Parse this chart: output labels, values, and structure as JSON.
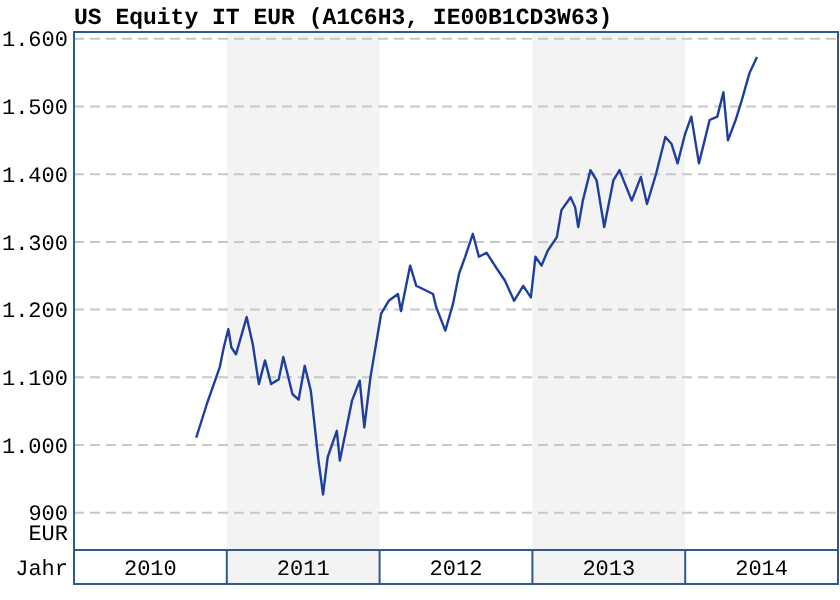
{
  "chart_data": {
    "type": "line",
    "title": "US Equity IT EUR (A1C6H3, IE00B1CD3W63)",
    "xlabel": "Jahr",
    "ylabel": "EUR",
    "x": [
      2010.8,
      2010.87,
      2010.954,
      2010.98,
      2011.01,
      2011.03,
      2011.06,
      2011.13,
      2011.17,
      2011.21,
      2011.25,
      2011.29,
      2011.34,
      2011.37,
      2011.43,
      2011.47,
      2011.51,
      2011.55,
      2011.6,
      2011.63,
      2011.66,
      2011.72,
      2011.74,
      2011.82,
      2011.87,
      2011.9,
      2011.94,
      2012.01,
      2012.06,
      2012.12,
      2012.14,
      2012.2,
      2012.24,
      2012.26,
      2012.35,
      2012.37,
      2012.43,
      2012.48,
      2012.52,
      2012.56,
      2012.61,
      2012.65,
      2012.7,
      2012.76,
      2012.82,
      2012.88,
      2012.94,
      2012.99,
      2013.02,
      2013.06,
      2013.1,
      2013.16,
      2013.19,
      2013.25,
      2013.28,
      2013.3,
      2013.33,
      2013.38,
      2013.42,
      2013.47,
      2013.53,
      2013.57,
      2013.65,
      2013.71,
      2013.75,
      2013.81,
      2013.87,
      2013.91,
      2013.95,
      2014.0,
      2014.04,
      2014.09,
      2014.16,
      2014.21,
      2014.25,
      2014.28,
      2014.33,
      2014.37,
      2014.42,
      2014.47
    ],
    "series": [
      {
        "color": "#1f3f9f",
        "values": [
          1011,
          1061,
          1115,
          1144,
          1171,
          1144,
          1134,
          1189,
          1149,
          1090,
          1125,
          1090,
          1097,
          1130,
          1075,
          1067,
          1117,
          1080,
          977,
          927,
          982,
          1021,
          977,
          1066,
          1095,
          1026,
          1100,
          1194,
          1213,
          1223,
          1198,
          1265,
          1235,
          1233,
          1223,
          1204,
          1169,
          1208,
          1253,
          1278,
          1312,
          1278,
          1284,
          1263,
          1243,
          1213,
          1235,
          1218,
          1278,
          1265,
          1287,
          1307,
          1347,
          1366,
          1351,
          1322,
          1361,
          1406,
          1391,
          1322,
          1391,
          1406,
          1361,
          1396,
          1356,
          1401,
          1455,
          1445,
          1416,
          1460,
          1485,
          1416,
          1480,
          1485,
          1521,
          1450,
          1480,
          1509,
          1549,
          1573
        ]
      }
    ],
    "xlim": [
      2010,
      2015
    ],
    "xticks": [
      {
        "value": 2010.5,
        "label": "2010"
      },
      {
        "value": 2011.5,
        "label": "2011"
      },
      {
        "value": 2012.5,
        "label": "2012"
      },
      {
        "value": 2013.5,
        "label": "2013"
      },
      {
        "value": 2014.5,
        "label": "2014"
      }
    ],
    "ylim": [
      845,
      1610
    ],
    "yticks": [
      900,
      {
        "value": 1000,
        "label": "1.000"
      },
      {
        "value": 1100,
        "label": "1.100"
      },
      {
        "value": 1200,
        "label": "1.200"
      },
      {
        "value": 1300,
        "label": "1.300"
      },
      {
        "value": 1400,
        "label": "1.400"
      },
      {
        "value": 1500,
        "label": "1.500"
      },
      {
        "value": 1600,
        "label": "1.600"
      }
    ],
    "bands": [
      {
        "axis": "x",
        "from": 2011,
        "to": 2012,
        "color": "#f3f3f3"
      },
      {
        "axis": "x",
        "from": 2013,
        "to": 2014,
        "color": "#f3f3f3"
      }
    ],
    "grid": "y",
    "line_style": "solid",
    "marker": "none"
  }
}
